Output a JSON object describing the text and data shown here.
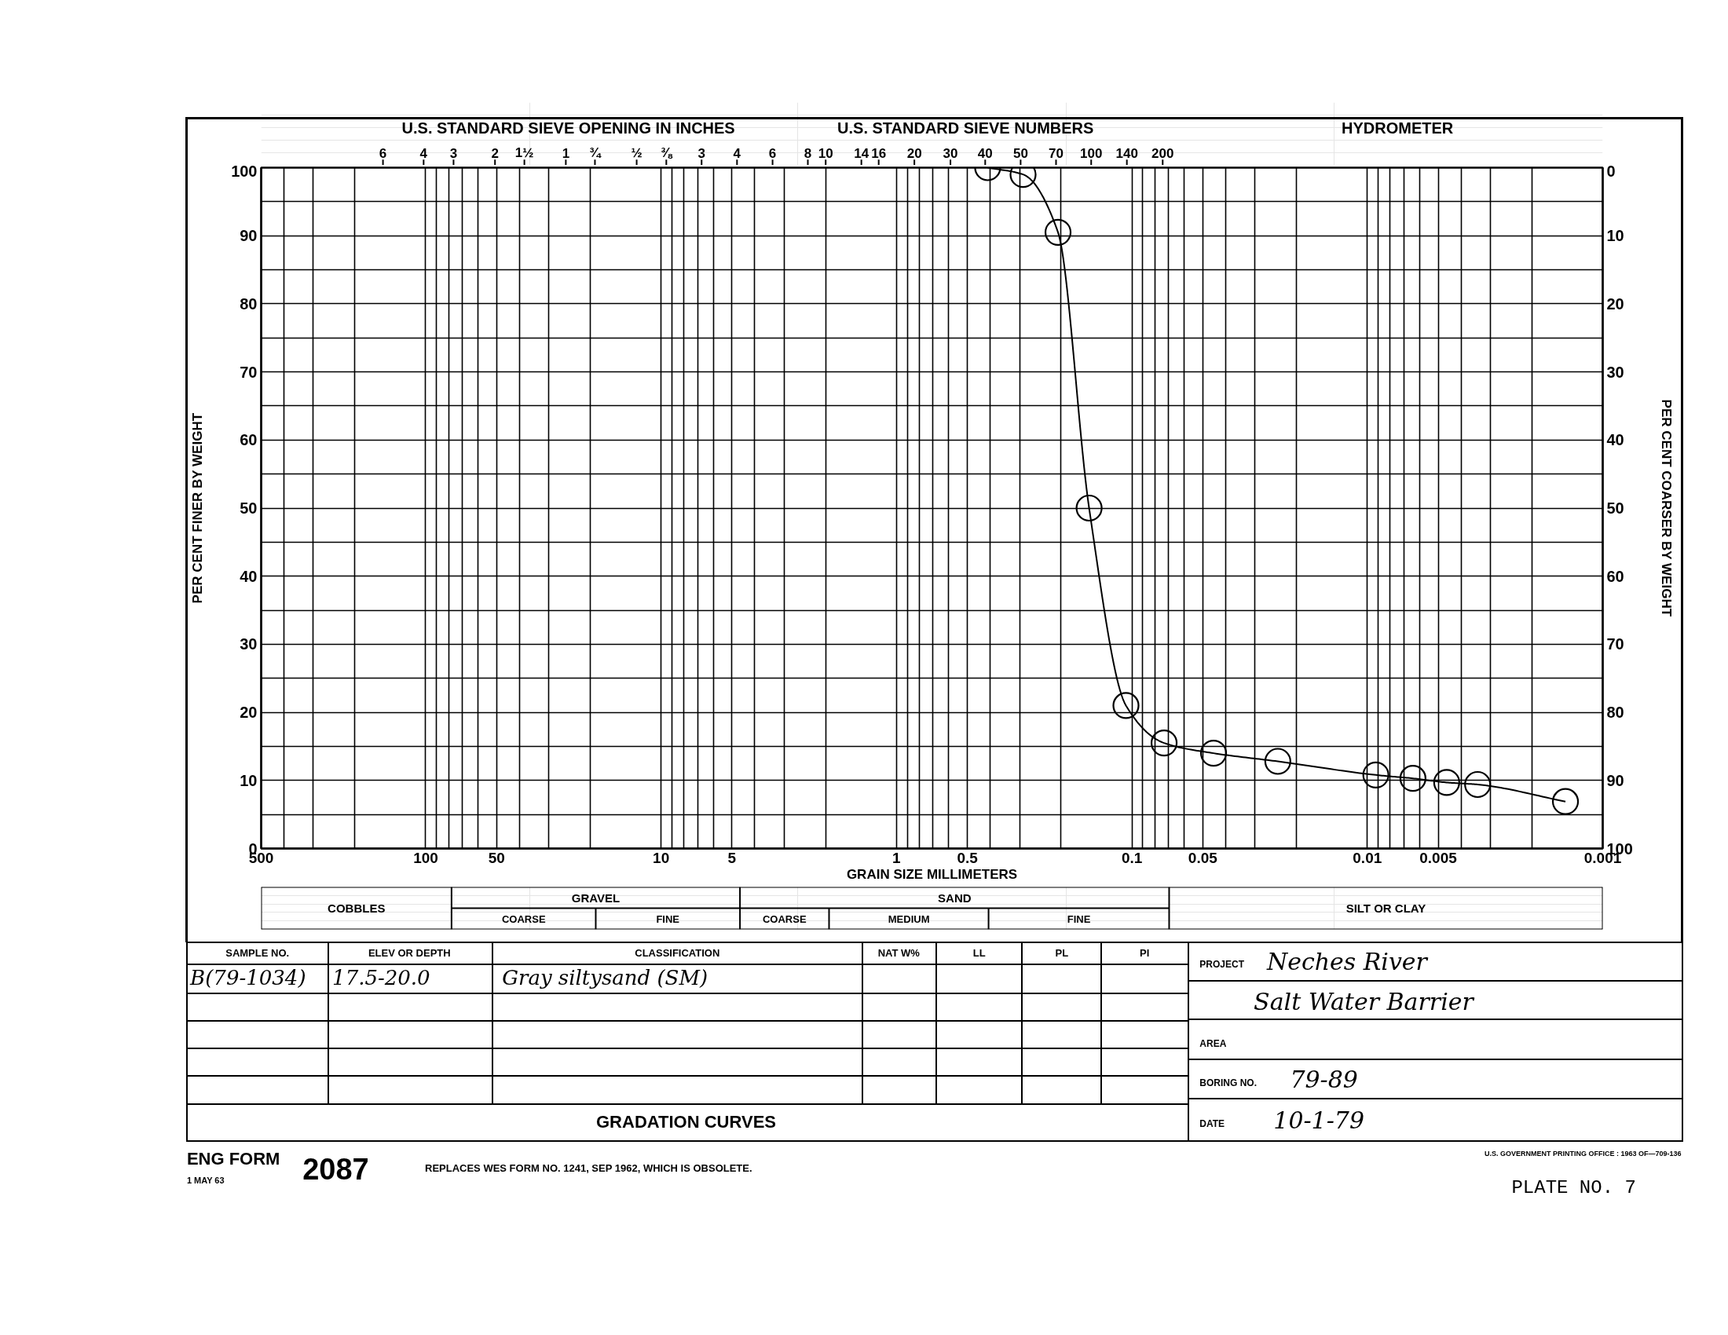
{
  "chart_data": {
    "type": "line",
    "title": "GRADATION CURVES",
    "xlabel": "GRAIN SIZE MILLIMETERS",
    "ylabel": "PER CENT FINER BY WEIGHT",
    "y2label": "PER CENT COARSER BY WEIGHT",
    "x": [
      0.41,
      0.29,
      0.206,
      0.152,
      0.106,
      0.073,
      0.045,
      0.024,
      0.0092,
      0.0064,
      0.0046,
      0.0034,
      0.00144
    ],
    "series": [
      {
        "color": "#000000",
        "values": [
          100,
          99,
          90.5,
          50,
          21,
          15.5,
          14,
          12.8,
          10.8,
          10.3,
          9.7,
          9.4,
          6.9
        ]
      }
    ],
    "xlim": [
      500,
      0.001
    ],
    "xticks": [
      500,
      100,
      50,
      10,
      5,
      1,
      0.5,
      0.1,
      0.05,
      0.01,
      0.005,
      0.001
    ],
    "ylim": [
      0,
      100
    ],
    "yticks": [
      0,
      10,
      20,
      30,
      40,
      50,
      60,
      70,
      80,
      90,
      100
    ],
    "y2lim": [
      100,
      0
    ],
    "y2ticks": [
      0,
      10,
      20,
      30,
      40,
      50,
      60,
      70,
      80,
      90,
      100
    ],
    "log": "x",
    "grid": true,
    "marker": "circle",
    "line_style": "solid",
    "annotations": [
      "U.S. STANDARD SIEVE OPENING IN INCHES",
      "U.S. STANDARD SIEVE NUMBERS",
      "HYDROMETER",
      "6",
      "4",
      "3",
      "2",
      "1½",
      "1",
      "¾",
      "½",
      "⅜",
      "3",
      "4",
      "6",
      "8",
      "10",
      "14",
      "16",
      "20",
      "30",
      "40",
      "50",
      "70",
      "100",
      "140",
      "200",
      "COBBLES",
      "GRAVEL",
      "COARSE",
      "FINE",
      "SAND",
      "COARSE",
      "MEDIUM",
      "FINE",
      "SILT OR CLAY",
      "SAMPLE NO.",
      "ELEV OR DEPTH",
      "CLASSIFICATION",
      "NAT W%",
      "LL",
      "PL",
      "PI",
      "B(79-1034)",
      "17.5-20.0",
      "Gray siltysand (SM)",
      "PROJECT",
      "Neches River",
      "Salt Water Barrier",
      "AREA",
      "BORING NO.",
      "79-89",
      "DATE",
      "10-1-79",
      "ENG FORM",
      "1 MAY 63",
      "2087",
      "REPLACES WES FORM NO. 1241, SEP 1962, WHICH IS OBSOLETE.",
      "U.S. GOVERNMENT PRINTING OFFICE : 1963 OF—709-136",
      "PLATE NO. 7"
    ]
  }
}
